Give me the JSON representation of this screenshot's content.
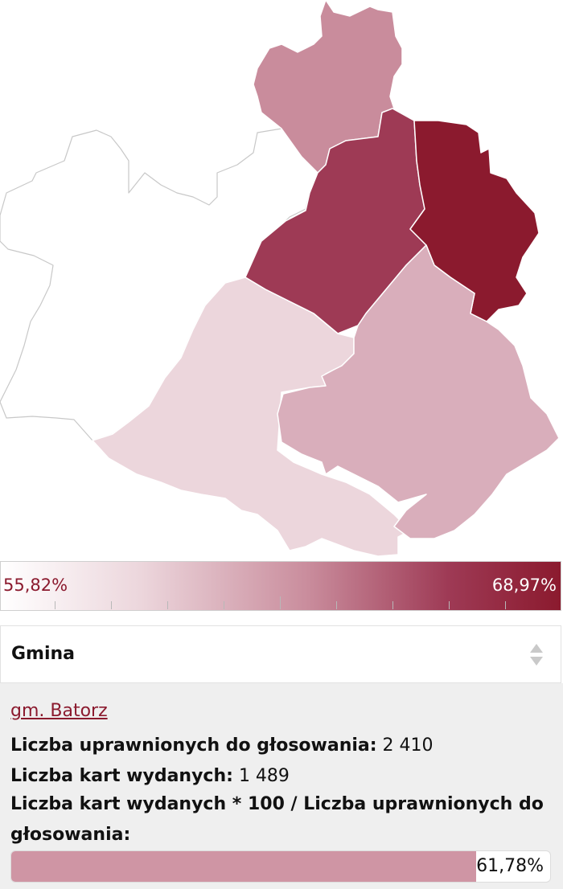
{
  "legend": {
    "min_label": "55,82%",
    "max_label": "68,97%",
    "min_value": 55.82,
    "max_value": 68.97,
    "colors": [
      "#ffffff",
      "#8b1a2e"
    ]
  },
  "map": {
    "regions": [
      {
        "name": "west-outer",
        "fill": "#ffffff",
        "value": null
      },
      {
        "name": "north",
        "fill": "#c98c9c",
        "value": 62.5
      },
      {
        "name": "center-north",
        "fill": "#9e3a55",
        "value": 66.5
      },
      {
        "name": "east",
        "fill": "#8b1a2e",
        "value": 68.97
      },
      {
        "name": "southwest",
        "fill": "#ecd6dc",
        "value": 57.5
      },
      {
        "name": "southeast",
        "fill": "#d9aebb",
        "value": 61.78
      }
    ]
  },
  "select": {
    "label": "Gmina"
  },
  "info": {
    "gmina_link": "gm. Batorz",
    "eligible_label": "Liczba uprawnionych do głosowania:",
    "eligible_value": "2 410",
    "cards_label": "Liczba kart wydanych:",
    "cards_value": "1 489",
    "ratio_label": "Liczba kart wydanych * 100 / Liczba uprawnionych do głosowania:",
    "ratio_value_text": "61,78%",
    "ratio_value": 61.78,
    "bar_color": "#cf95a4"
  }
}
